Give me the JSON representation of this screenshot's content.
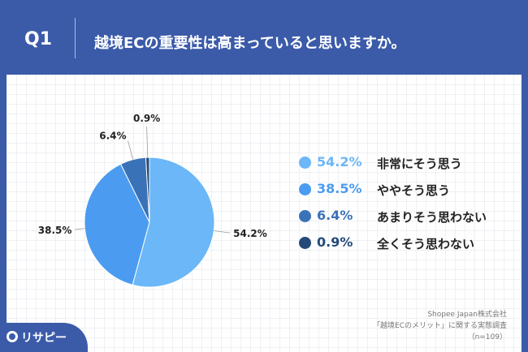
{
  "header": {
    "q_label": "Q1",
    "question": "越境ECの重要性は高まっていると思いますか。"
  },
  "chart_data": {
    "type": "pie",
    "categories": [
      "非常にそう思う",
      "ややそう思う",
      "あまりそう思わない",
      "全くそう思わない"
    ],
    "values": [
      54.2,
      38.5,
      6.4,
      0.9
    ],
    "value_labels": [
      "54.2%",
      "38.5%",
      "6.4%",
      "0.9%"
    ],
    "colors": [
      "#6bb7f7",
      "#4b9cf0",
      "#3a72b8",
      "#254a7a"
    ],
    "legend_position": "right"
  },
  "legend": [
    {
      "pct": "54.2%",
      "label": "非常にそう思う",
      "color": "#6bb7f7",
      "pct_color": "#6bb7f7"
    },
    {
      "pct": "38.5%",
      "label": "ややそう思う",
      "color": "#4b9cf0",
      "pct_color": "#4b9cf0"
    },
    {
      "pct": "6.4%",
      "label": "あまりそう思わない",
      "color": "#3a72b8",
      "pct_color": "#3a72b8"
    },
    {
      "pct": "0.9%",
      "label": "全くそう思わない",
      "color": "#254a7a",
      "pct_color": "#254a7a"
    }
  ],
  "source": {
    "company": "Shopee Japan株式会社",
    "survey": "「越境ECのメリット」に関する実態調査",
    "n": "（n=109）"
  },
  "logo": {
    "text": "リサピー",
    "icon": "risapi-logo-icon"
  },
  "colors": {
    "brand": "#3b5ba9"
  }
}
